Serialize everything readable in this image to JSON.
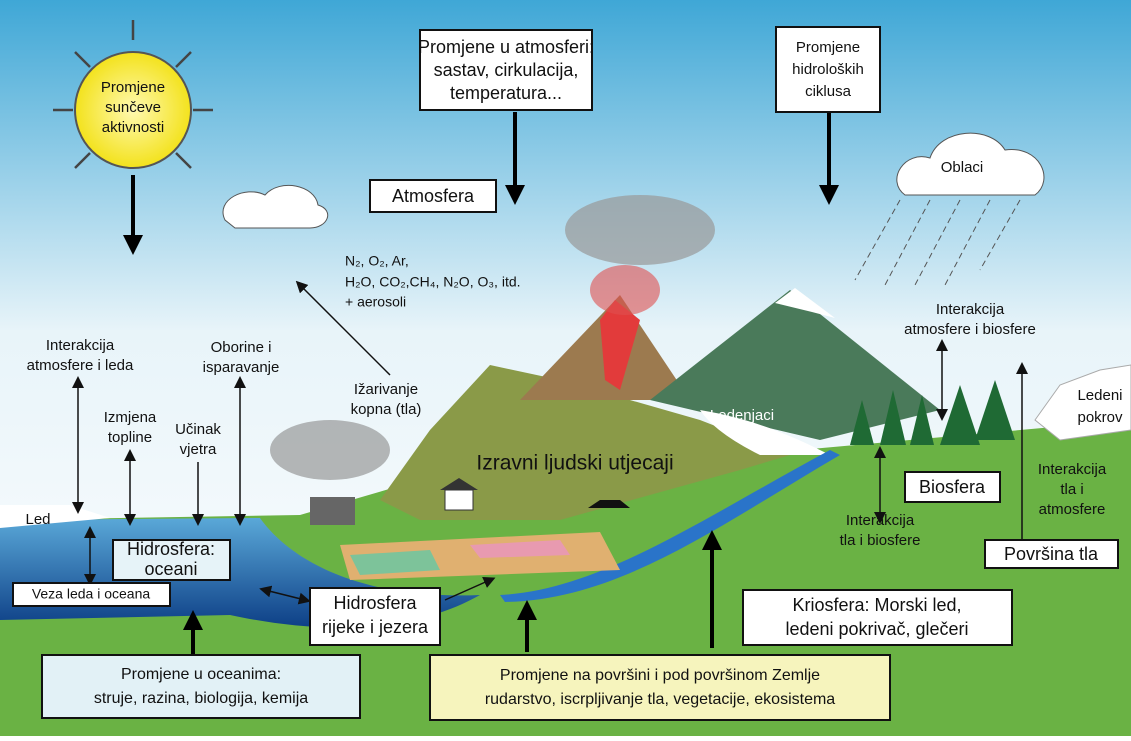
{
  "labels": {
    "sun": [
      "Promjene",
      "sunčeve",
      "aktivnosti"
    ],
    "atmosphere_changes": [
      "Promjene u atmosferi:",
      "sastav, cirkulacija,",
      "temperatura..."
    ],
    "hydro_changes": [
      "Promjene",
      "hidroloških",
      "ciklusa"
    ],
    "clouds": "Oblaci",
    "atmosphere": "Atmosfera",
    "gases": [
      "N₂, O₂, Ar,",
      "H₂O, CO₂,CH₄, N₂O, O₃, itd.",
      "+ aerosoli"
    ],
    "atm_ice": [
      "Interakcija",
      "atmosfere i leda"
    ],
    "heat_exchange": [
      "Izmjena",
      "topline"
    ],
    "wind_effect": [
      "Učinak",
      "vjetra"
    ],
    "precipitation": [
      "Oborine i",
      "isparavanje"
    ],
    "land_radiation": [
      "Ižarivanje",
      "kopna (tla)"
    ],
    "human": "Izravni ljudski utjecaji",
    "glaciers": "Ledenjaci",
    "atm_bio": [
      "Interakcija",
      "atmosfere i biosfere"
    ],
    "ice_sheet": [
      "Ledeni",
      "pokrov"
    ],
    "soil_atm": [
      "Interakcija",
      "tla i",
      "atmosfere"
    ],
    "biosphere": "Biosfera",
    "soil_bio": [
      "Interakcija",
      "tla i biosfere"
    ],
    "land_surface": "Površina tla",
    "ice": "Led",
    "ocean": [
      "Hidrosfera:",
      "oceani"
    ],
    "ice_ocean": "Veza leda i oceana",
    "rivers": [
      "Hidrosfera",
      "rijeke i jezera"
    ],
    "cryosphere": [
      "Kriosfera: Morski led,",
      "ledeni pokrivač, glečeri"
    ],
    "ocean_changes": [
      "Promjene u oceanima:",
      "struje, razina, biologija, kemija"
    ],
    "surface_changes": [
      "Promjene na površini i pod površinom Zemlje",
      "rudarstvo, iscrpljivanje tla, vegetacije, ekosistema"
    ]
  }
}
